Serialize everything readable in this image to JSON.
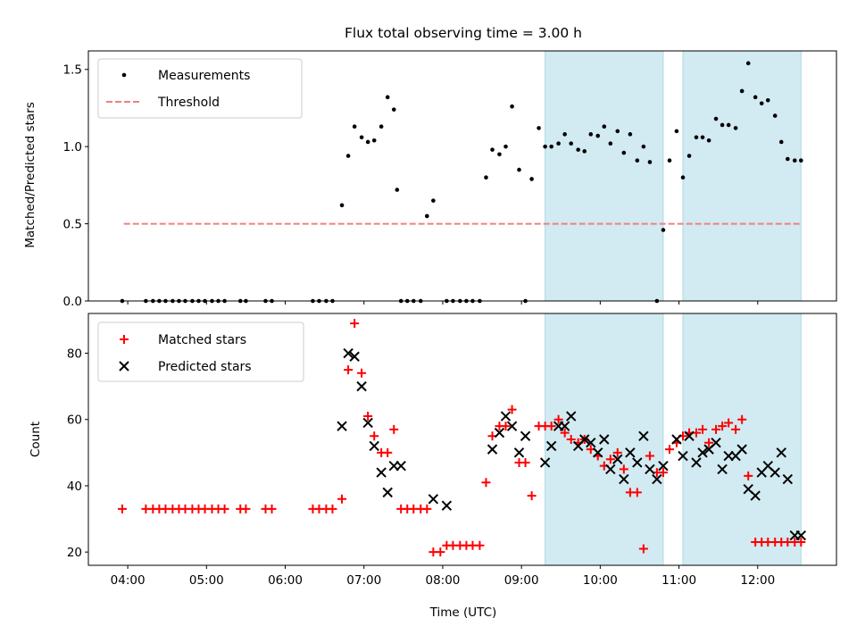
{
  "figure": {
    "title": "Flux total observing time = 3.00 h",
    "xlabel": "Time (UTC)"
  },
  "chart_data": [
    {
      "type": "scatter",
      "ylabel": "Matched/Predicted stars",
      "ylim": [
        0,
        1.62
      ],
      "yticks": [
        0,
        0.5,
        1.0,
        1.5
      ],
      "ytick_labels": [
        "0.0",
        "0.5",
        "1.0",
        "1.5"
      ],
      "xlim": [
        3.5,
        13.0
      ],
      "xticks": [
        4,
        5,
        6,
        7,
        8,
        9,
        10,
        11,
        12
      ],
      "xtick_labels": [
        "04:00",
        "05:00",
        "06:00",
        "07:00",
        "08:00",
        "09:00",
        "10:00",
        "11:00",
        "12:00"
      ],
      "xticklabels_visible": false,
      "legend": {
        "position": "top-left",
        "entries": [
          "Measurements",
          "Threshold"
        ]
      },
      "shaded_spans": [
        [
          9.3,
          10.8
        ],
        [
          11.05,
          12.55
        ]
      ],
      "colors": {
        "measurements": "#000000",
        "threshold": "#f08080",
        "span": "#add8e6"
      },
      "threshold": {
        "name": "Threshold",
        "value": 0.5,
        "x_range": [
          3.95,
          12.55
        ]
      },
      "series": [
        {
          "name": "Measurements",
          "x": [
            3.93,
            4.23,
            4.32,
            4.4,
            4.48,
            4.57,
            4.65,
            4.73,
            4.82,
            4.9,
            4.98,
            5.07,
            5.15,
            5.23,
            5.43,
            5.5,
            5.75,
            5.83,
            6.35,
            6.43,
            6.52,
            6.6,
            6.72,
            6.8,
            6.88,
            6.97,
            7.05,
            7.13,
            7.22,
            7.3,
            7.38,
            7.42,
            7.47,
            7.55,
            7.63,
            7.72,
            7.8,
            7.88,
            8.05,
            8.13,
            8.22,
            8.3,
            8.38,
            8.47,
            8.55,
            8.63,
            8.72,
            8.8,
            8.88,
            8.97,
            9.05,
            9.13,
            9.22,
            9.3,
            9.38,
            9.47,
            9.55,
            9.63,
            9.72,
            9.8,
            9.88,
            9.97,
            10.05,
            10.13,
            10.22,
            10.3,
            10.38,
            10.47,
            10.55,
            10.63,
            10.72,
            10.8,
            10.88,
            10.97,
            11.05,
            11.13,
            11.22,
            11.3,
            11.38,
            11.47,
            11.55,
            11.63,
            11.72,
            11.8,
            11.88,
            11.97,
            12.05,
            12.13,
            12.22,
            12.3,
            12.38,
            12.47,
            12.55
          ],
          "y": [
            0,
            0,
            0,
            0,
            0,
            0,
            0,
            0,
            0,
            0,
            0,
            0,
            0,
            0,
            0,
            0,
            0,
            0,
            0,
            0,
            0,
            0,
            0.62,
            0.94,
            1.13,
            1.06,
            1.03,
            1.04,
            1.13,
            1.32,
            1.24,
            0.72,
            0,
            0,
            0,
            0,
            0.55,
            0.65,
            0,
            0,
            0,
            0,
            0,
            0,
            0.8,
            0.98,
            0.95,
            1.0,
            1.26,
            0.85,
            0,
            0.79,
            1.12,
            1.0,
            1.0,
            1.02,
            1.08,
            1.02,
            0.98,
            0.97,
            1.08,
            1.07,
            1.13,
            1.02,
            1.1,
            0.96,
            1.08,
            0.91,
            1.0,
            0.9,
            0,
            0.46,
            0.91,
            1.1,
            0.8,
            0.94,
            1.06,
            1.06,
            1.04,
            1.18,
            1.14,
            1.14,
            1.12,
            1.36,
            1.54,
            1.32,
            1.28,
            1.3,
            1.2,
            1.03,
            0.92,
            0.91,
            0.91
          ]
        }
      ]
    },
    {
      "type": "scatter",
      "ylabel": "Count",
      "xlabel": "Time (UTC)",
      "ylim": [
        16,
        92
      ],
      "yticks": [
        20,
        40,
        60,
        80
      ],
      "ytick_labels": [
        "20",
        "40",
        "60",
        "80"
      ],
      "xlim": [
        3.5,
        13.0
      ],
      "xticks": [
        4,
        5,
        6,
        7,
        8,
        9,
        10,
        11,
        12
      ],
      "xtick_labels": [
        "04:00",
        "05:00",
        "06:00",
        "07:00",
        "08:00",
        "09:00",
        "10:00",
        "11:00",
        "12:00"
      ],
      "legend": {
        "position": "top-left",
        "entries": [
          "Matched stars",
          "Predicted stars"
        ]
      },
      "shaded_spans": [
        [
          9.3,
          10.8
        ],
        [
          11.05,
          12.55
        ]
      ],
      "colors": {
        "matched": "#ff0000",
        "predicted": "#000000",
        "span": "#add8e6"
      },
      "series": [
        {
          "name": "Matched stars",
          "marker": "+",
          "x": [
            3.93,
            4.23,
            4.32,
            4.4,
            4.48,
            4.57,
            4.65,
            4.73,
            4.82,
            4.9,
            4.98,
            5.07,
            5.15,
            5.23,
            5.43,
            5.5,
            5.75,
            5.83,
            6.35,
            6.43,
            6.52,
            6.6,
            6.72,
            6.8,
            6.88,
            6.97,
            7.05,
            7.13,
            7.22,
            7.3,
            7.38,
            7.47,
            7.55,
            7.63,
            7.72,
            7.8,
            7.88,
            7.97,
            8.05,
            8.13,
            8.22,
            8.3,
            8.38,
            8.47,
            8.55,
            8.63,
            8.72,
            8.8,
            8.88,
            8.97,
            9.05,
            9.13,
            9.22,
            9.3,
            9.38,
            9.47,
            9.55,
            9.63,
            9.72,
            9.8,
            9.88,
            9.97,
            10.05,
            10.13,
            10.22,
            10.3,
            10.38,
            10.47,
            10.55,
            10.63,
            10.72,
            10.8,
            10.88,
            10.97,
            11.05,
            11.13,
            11.22,
            11.3,
            11.38,
            11.47,
            11.55,
            11.63,
            11.72,
            11.8,
            11.88,
            11.97,
            12.05,
            12.13,
            12.22,
            12.3,
            12.38,
            12.47,
            12.55
          ],
          "y": [
            33,
            33,
            33,
            33,
            33,
            33,
            33,
            33,
            33,
            33,
            33,
            33,
            33,
            33,
            33,
            33,
            33,
            33,
            33,
            33,
            33,
            33,
            36,
            75,
            89,
            74,
            61,
            55,
            50,
            50,
            57,
            33,
            33,
            33,
            33,
            33,
            20,
            20,
            22,
            22,
            22,
            22,
            22,
            22,
            41,
            55,
            58,
            58,
            63,
            47,
            47,
            37,
            58,
            58,
            58,
            60,
            56,
            54,
            53,
            54,
            51,
            49,
            46,
            48,
            50,
            45,
            38,
            38,
            21,
            49,
            44,
            44,
            51,
            53,
            55,
            56,
            56,
            57,
            53,
            57,
            58,
            59,
            57,
            60,
            43,
            23,
            23,
            23,
            23,
            23,
            23,
            23,
            23
          ]
        },
        {
          "name": "Predicted stars",
          "marker": "x",
          "x": [
            6.72,
            6.8,
            6.88,
            6.97,
            7.05,
            7.13,
            7.22,
            7.3,
            7.38,
            7.47,
            7.88,
            8.05,
            8.63,
            8.72,
            8.8,
            8.88,
            8.97,
            9.05,
            9.3,
            9.38,
            9.47,
            9.55,
            9.63,
            9.72,
            9.8,
            9.88,
            9.97,
            10.05,
            10.13,
            10.22,
            10.3,
            10.38,
            10.47,
            10.55,
            10.63,
            10.72,
            10.8,
            10.97,
            11.05,
            11.13,
            11.22,
            11.3,
            11.38,
            11.47,
            11.55,
            11.63,
            11.72,
            11.8,
            11.88,
            11.97,
            12.05,
            12.13,
            12.22,
            12.3,
            12.38,
            12.47,
            12.55
          ],
          "y": [
            58,
            80,
            79,
            70,
            59,
            52,
            44,
            38,
            46,
            46,
            36,
            34,
            51,
            56,
            61,
            58,
            50,
            55,
            47,
            52,
            58,
            58,
            61,
            52,
            54,
            53,
            50,
            54,
            45,
            48,
            42,
            50,
            47,
            55,
            45,
            42,
            46,
            54,
            49,
            55,
            47,
            50,
            51,
            53,
            45,
            49,
            49,
            51,
            39,
            37,
            44,
            46,
            44,
            50,
            42,
            25,
            25
          ]
        }
      ]
    }
  ]
}
